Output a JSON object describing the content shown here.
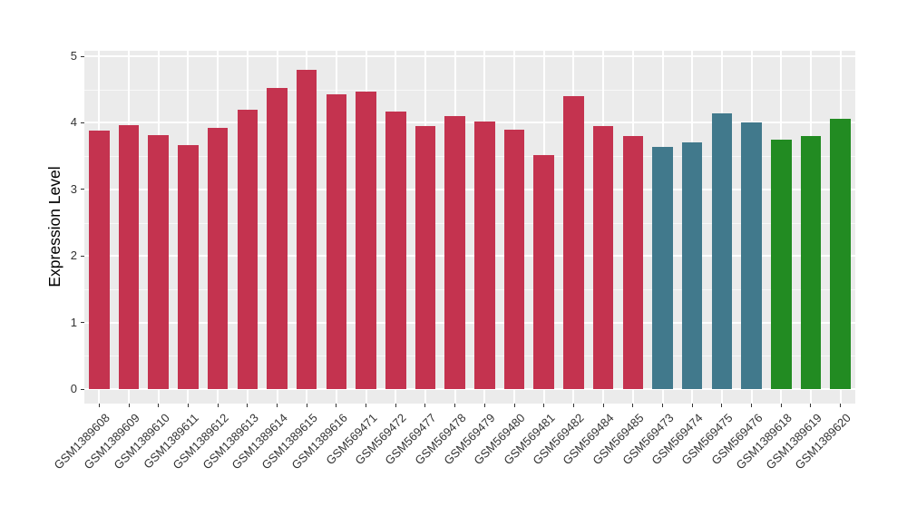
{
  "chart_data": {
    "type": "bar",
    "title": "",
    "xlabel": "",
    "ylabel": "Expression Level",
    "ylim": [
      0,
      5
    ],
    "yticks": [
      0,
      1,
      2,
      3,
      4,
      5
    ],
    "minor_gridlines": [
      0.5,
      1.5,
      2.5,
      3.5,
      4.5
    ],
    "grid": "on",
    "legend_position": "none",
    "panel_background": "#EBEBEB",
    "gridline_color": "#FFFFFF",
    "tick_label_color": "#333333",
    "tick_mark_color": "#333333",
    "groups": [
      {
        "name": "series-red",
        "color": "#C4334F"
      },
      {
        "name": "series-teal",
        "color": "#41798C"
      },
      {
        "name": "series-green",
        "color": "#228B22"
      }
    ],
    "bars": [
      {
        "label": "GSM1389608",
        "value": 3.88,
        "group": 0
      },
      {
        "label": "GSM1389609",
        "value": 3.97,
        "group": 0
      },
      {
        "label": "GSM1389610",
        "value": 3.81,
        "group": 0
      },
      {
        "label": "GSM1389611",
        "value": 3.66,
        "group": 0
      },
      {
        "label": "GSM1389612",
        "value": 3.92,
        "group": 0
      },
      {
        "label": "GSM1389613",
        "value": 4.2,
        "group": 0
      },
      {
        "label": "GSM1389614",
        "value": 4.52,
        "group": 0
      },
      {
        "label": "GSM1389615",
        "value": 4.79,
        "group": 0
      },
      {
        "label": "GSM1389616",
        "value": 4.43,
        "group": 0
      },
      {
        "label": "GSM569471",
        "value": 4.47,
        "group": 0
      },
      {
        "label": "GSM569472",
        "value": 4.17,
        "group": 0
      },
      {
        "label": "GSM569477",
        "value": 3.95,
        "group": 0
      },
      {
        "label": "GSM569478",
        "value": 4.1,
        "group": 0
      },
      {
        "label": "GSM569479",
        "value": 4.02,
        "group": 0
      },
      {
        "label": "GSM569480",
        "value": 3.9,
        "group": 0
      },
      {
        "label": "GSM569481",
        "value": 3.51,
        "group": 0
      },
      {
        "label": "GSM569482",
        "value": 4.4,
        "group": 0
      },
      {
        "label": "GSM569484",
        "value": 3.95,
        "group": 0
      },
      {
        "label": "GSM569485",
        "value": 3.8,
        "group": 0
      },
      {
        "label": "GSM569473",
        "value": 3.64,
        "group": 1
      },
      {
        "label": "GSM569474",
        "value": 3.7,
        "group": 1
      },
      {
        "label": "GSM569475",
        "value": 4.14,
        "group": 1
      },
      {
        "label": "GSM569476",
        "value": 4.0,
        "group": 1
      },
      {
        "label": "GSM1389618",
        "value": 3.75,
        "group": 2
      },
      {
        "label": "GSM1389619",
        "value": 3.8,
        "group": 2
      },
      {
        "label": "GSM1389620",
        "value": 4.06,
        "group": 2
      }
    ]
  }
}
